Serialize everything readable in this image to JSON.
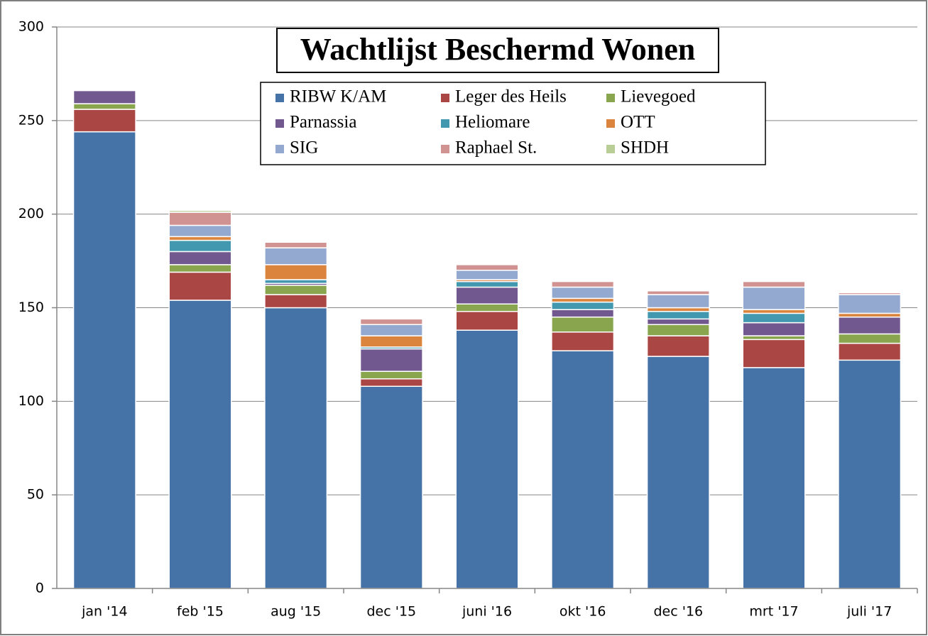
{
  "chart_data": {
    "type": "stacked-bar",
    "title": "Wachtlijst Beschermd Wonen",
    "categories": [
      "jan '14",
      "feb '15",
      "aug '15",
      "dec '15",
      "juni '16",
      "okt '16",
      "dec '16",
      "mrt '17",
      "juli '17"
    ],
    "series": [
      {
        "name": "RIBW K/AM",
        "color": "#4572a7",
        "values": [
          244,
          154,
          150,
          108,
          138,
          127,
          124,
          118,
          122
        ]
      },
      {
        "name": "Leger des Heils",
        "color": "#aa4643",
        "values": [
          12,
          15,
          7,
          4,
          10,
          10,
          11,
          15,
          9
        ]
      },
      {
        "name": "Lievegoed",
        "color": "#89a54e",
        "values": [
          3,
          4,
          5,
          4,
          4,
          8,
          6,
          2,
          5
        ]
      },
      {
        "name": "Parnassia",
        "color": "#71588f",
        "values": [
          7,
          7,
          1,
          12,
          9,
          4,
          3,
          7,
          9
        ]
      },
      {
        "name": "Heliomare",
        "color": "#4198af",
        "values": [
          0,
          6,
          2,
          1,
          3,
          4,
          4,
          5,
          0
        ]
      },
      {
        "name": "OTT",
        "color": "#db843d",
        "values": [
          0,
          2,
          8,
          6,
          1,
          2,
          2,
          2,
          2
        ]
      },
      {
        "name": "SIG",
        "color": "#93a9cf",
        "values": [
          0,
          6,
          9,
          6,
          5,
          6,
          7,
          12,
          10
        ]
      },
      {
        "name": "Raphael St.",
        "color": "#d19392",
        "values": [
          0,
          7,
          3,
          3,
          3,
          3,
          2,
          3,
          1
        ]
      },
      {
        "name": "SHDH",
        "color": "#b9cd96",
        "values": [
          0,
          1,
          0,
          0,
          0,
          0,
          0,
          0,
          0
        ]
      }
    ],
    "ylim": [
      0,
      300
    ],
    "yticks": [
      0,
      50,
      100,
      150,
      200,
      250,
      300
    ],
    "grid": true
  }
}
